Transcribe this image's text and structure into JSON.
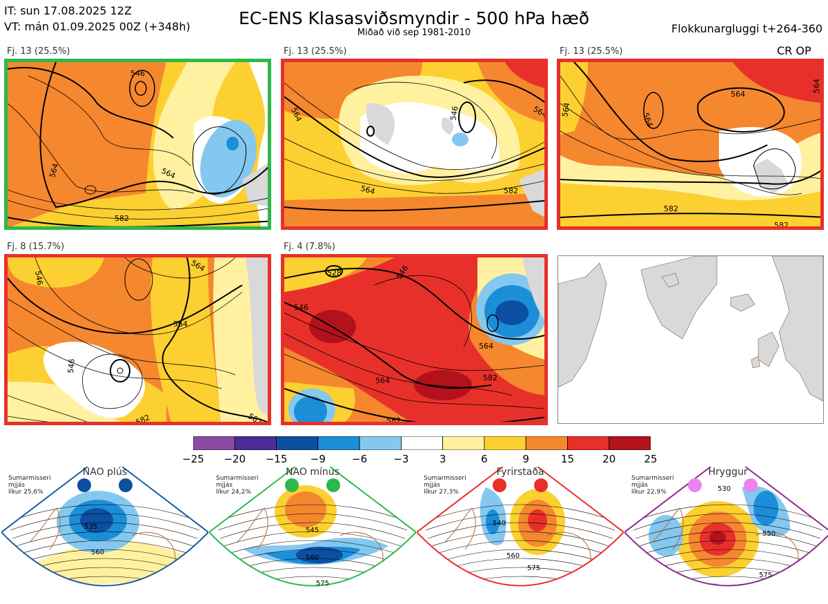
{
  "header": {
    "it": "IT: sun 17.08.2025 12Z",
    "vt": "VT: mán 01.09.2025 00Z  (+348h)",
    "title": "EC-ENS Klasasviðsmyndir - 500 hPa hæð",
    "subtitle": "Miðað við sep 1981-2010",
    "window": "Flokkunargluggi t+264-360",
    "crop_label": "CR OP"
  },
  "chart_data": {
    "type": "heatmap",
    "title": "EC-ENS Klasasviðsmyndir - 500 hPa hæð",
    "panels": [
      {
        "label": "Fj. 13 (25.5%)",
        "border": "#2db84a",
        "contours": [
          "546",
          "564",
          "564",
          "582",
          "582"
        ]
      },
      {
        "label": "Fj. 13 (25.5%)",
        "border": "#e8302a",
        "contours": [
          "564",
          "564",
          "546",
          "564",
          "582",
          "582"
        ]
      },
      {
        "label": "Fj. 13 (25.5%)",
        "border": "#e8302a",
        "contours": [
          "564",
          "564",
          "564",
          "564",
          "582",
          "582"
        ]
      },
      {
        "label": "Fj. 8 (15.7%)",
        "border": "#e8302a",
        "contours": [
          "546",
          "564",
          "564",
          "546",
          "582",
          "582"
        ]
      },
      {
        "label": "Fj. 4 (7.8%)",
        "border": "#e8302a",
        "contours": [
          "528",
          "546",
          "546",
          "564",
          "564",
          "582",
          "582"
        ]
      }
    ],
    "colorbar": {
      "ticks": [
        "−25",
        "−20",
        "−15",
        "−9",
        "−6",
        "−3",
        "3",
        "6",
        "9",
        "15",
        "20",
        "25"
      ],
      "colors": [
        "#8a4ba4",
        "#4a2d94",
        "#0d4fa0",
        "#1c8ed8",
        "#85c8ef",
        "#ffffff",
        "#fff1a0",
        "#fdd031",
        "#f5872f",
        "#e8302a",
        "#b3121c"
      ]
    },
    "regimes": [
      {
        "name": "NAO plús",
        "season": "Sumarmisseri",
        "smoothing": "mjjás",
        "likelihood": "líkur 25,6%",
        "color": "#1a5aa6",
        "dot": "#0d4fa0",
        "contours": [
          "535",
          "560"
        ]
      },
      {
        "name": "NAO mínus",
        "season": "Sumarmisseri",
        "smoothing": "mjjás",
        "likelihood": "líkur 24,2%",
        "color": "#2db84a",
        "dot": "#2db84a",
        "contours": [
          "545",
          "560",
          "575"
        ]
      },
      {
        "name": "Fyrirstaða",
        "season": "Sumarmisseri",
        "smoothing": "mjjás",
        "likelihood": "líkur 27,3%",
        "color": "#e8302a",
        "dot": "#e8302a",
        "contours": [
          "540",
          "560",
          "575"
        ]
      },
      {
        "name": "Hryggur",
        "season": "Sumarmisseri",
        "smoothing": "mjjás",
        "likelihood": "líkur 22,9%",
        "color": "#8b2a90",
        "dot": "#ee82ee",
        "contours": [
          "530",
          "550",
          "575"
        ]
      }
    ]
  }
}
